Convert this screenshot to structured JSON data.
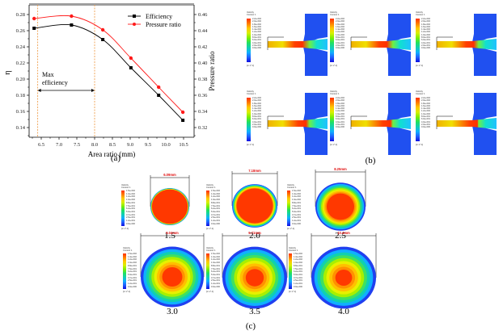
{
  "chart_data": {
    "type": "line",
    "panel_caption": "(a)",
    "xlabel": "Area ratio (mm)",
    "ylabel_left": "η",
    "ylabel_right": "Pressure ratio",
    "xlim": [
      6.2,
      10.6
    ],
    "ylim_left": [
      0.13,
      0.29
    ],
    "ylim_right": [
      0.31,
      0.47
    ],
    "x_ticks": [
      "6.5",
      "7.0",
      "7.5",
      "8.0",
      "8.5",
      "9.0",
      "9.5",
      "10.0",
      "10.5"
    ],
    "x_tick_values": [
      6.5,
      7.0,
      7.5,
      8.0,
      8.5,
      9.0,
      9.5,
      10.0,
      10.5
    ],
    "y_ticks_left": [
      "0.14",
      "0.16",
      "0.18",
      "0.20",
      "0.22",
      "0.24",
      "0.26",
      "0.28"
    ],
    "y_tick_values_left": [
      0.14,
      0.16,
      0.18,
      0.2,
      0.22,
      0.24,
      0.26,
      0.28
    ],
    "y_ticks_right": [
      "0.32",
      "0.34",
      "0.36",
      "0.38",
      "0.40",
      "0.42",
      "0.44",
      "0.46"
    ],
    "y_tick_values_right": [
      0.32,
      0.34,
      0.36,
      0.38,
      0.4,
      0.42,
      0.44,
      0.46
    ],
    "legend_position": "top-right",
    "series": [
      {
        "name": "Efficiency",
        "axis": "left",
        "color": "#000000",
        "marker": "square",
        "x": [
          6.3,
          7.35,
          8.23,
          9.02,
          9.8,
          10.48
        ],
        "values": [
          0.263,
          0.267,
          0.249,
          0.214,
          0.18,
          0.149
        ]
      },
      {
        "name": "Pressure ratio",
        "axis": "right",
        "color": "#ff1a1a",
        "marker": "circle",
        "x": [
          6.3,
          7.35,
          8.23,
          9.02,
          9.8,
          10.48
        ],
        "values": [
          0.455,
          0.458,
          0.441,
          0.406,
          0.37,
          0.339
        ]
      }
    ],
    "annotations": {
      "vlines": [
        6.4,
        8.0
      ],
      "vline_color": "#f0a050",
      "range_label": [
        "Max",
        "efficiency"
      ],
      "range": [
        6.4,
        8.0
      ]
    }
  },
  "panel_b": {
    "caption": "(b)",
    "items": [
      {
        "label": "1.5",
        "length": "4.353mm"
      },
      {
        "label": "2.0",
        "length": "7.003mm"
      },
      {
        "label": "2.5",
        "length": "5.254mm"
      },
      {
        "label": "3.0",
        "length": "5.811mm"
      },
      {
        "label": "3.5",
        "length": "5.761mm"
      },
      {
        "label": "4.0",
        "length": "10.138mm"
      }
    ]
  },
  "panel_c": {
    "caption": "(c)",
    "items": [
      {
        "label": "1.5",
        "diameter": "6.09mm"
      },
      {
        "label": "2.0",
        "diameter": "7.18mm"
      },
      {
        "label": "2.5",
        "diameter": "8.25mm"
      },
      {
        "label": "3.0",
        "diameter": "9.04mm"
      },
      {
        "label": "3.5",
        "diameter": "9.71mm"
      },
      {
        "label": "4.0",
        "diameter": "10.4mm"
      }
    ]
  },
  "contour_legend": {
    "title": "Velocity Contour 1",
    "unit": "[m s^-1]"
  }
}
